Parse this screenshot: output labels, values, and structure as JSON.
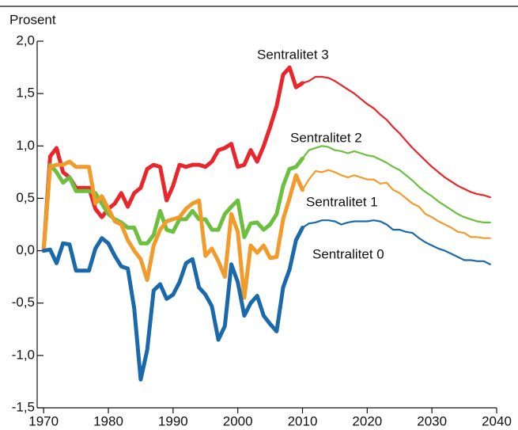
{
  "chart_data": {
    "type": "line",
    "ylabel": "Prosent",
    "x": [
      1970,
      1971,
      1972,
      1973,
      1974,
      1975,
      1976,
      1977,
      1978,
      1979,
      1980,
      1981,
      1982,
      1983,
      1984,
      1985,
      1986,
      1987,
      1988,
      1989,
      1990,
      1991,
      1992,
      1993,
      1994,
      1995,
      1996,
      1997,
      1998,
      1999,
      2000,
      2001,
      2002,
      2003,
      2004,
      2005,
      2006,
      2007,
      2008,
      2009,
      2010,
      2011,
      2012,
      2013,
      2014,
      2015,
      2016,
      2017,
      2018,
      2019,
      2020,
      2021,
      2022,
      2023,
      2024,
      2025,
      2026,
      2027,
      2028,
      2029,
      2030,
      2031,
      2032,
      2033,
      2034,
      2035,
      2036,
      2037,
      2038,
      2039
    ],
    "projection_start": 2010,
    "xlim": [
      1969,
      2040
    ],
    "xticks": [
      1970,
      1980,
      1990,
      2000,
      2010,
      2020,
      2030,
      2040
    ],
    "ylim": [
      -1.5,
      2.0
    ],
    "yticks": [
      {
        "value": -1.5,
        "label": "-1,5"
      },
      {
        "value": -1.0,
        "label": "-1,0"
      },
      {
        "value": -0.5,
        "label": "-0,5"
      },
      {
        "value": 0.0,
        "label": "0,0"
      },
      {
        "value": 0.5,
        "label": "0,5"
      },
      {
        "value": 1.0,
        "label": "1,0"
      },
      {
        "value": 1.5,
        "label": "1,5"
      },
      {
        "value": 2.0,
        "label": "2,0"
      }
    ],
    "series": [
      {
        "name": "Sentralitet 3",
        "color": "#e8262b",
        "values": [
          0.0,
          0.9,
          0.98,
          0.75,
          0.7,
          0.6,
          0.6,
          0.6,
          0.4,
          0.32,
          0.4,
          0.45,
          0.55,
          0.42,
          0.55,
          0.6,
          0.78,
          0.82,
          0.8,
          0.48,
          0.62,
          0.82,
          0.8,
          0.82,
          0.82,
          0.8,
          0.85,
          0.96,
          0.98,
          1.02,
          0.8,
          0.82,
          0.96,
          0.85,
          1.0,
          1.18,
          1.38,
          1.68,
          1.75,
          1.56,
          1.6,
          1.62,
          1.66,
          1.66,
          1.65,
          1.62,
          1.58,
          1.54,
          1.5,
          1.45,
          1.4,
          1.36,
          1.3,
          1.25,
          1.18,
          1.12,
          1.05,
          0.98,
          0.92,
          0.86,
          0.8,
          0.75,
          0.7,
          0.66,
          0.62,
          0.59,
          0.56,
          0.54,
          0.53,
          0.51
        ]
      },
      {
        "name": "Sentralitet 2",
        "color": "#6cbf3f",
        "values": [
          0.0,
          0.82,
          0.75,
          0.65,
          0.7,
          0.57,
          0.57,
          0.57,
          0.55,
          0.45,
          0.35,
          0.3,
          0.27,
          0.22,
          0.22,
          0.07,
          0.07,
          0.15,
          0.38,
          0.2,
          0.18,
          0.3,
          0.3,
          0.38,
          0.3,
          0.3,
          0.2,
          0.2,
          0.35,
          0.42,
          0.48,
          0.13,
          0.26,
          0.27,
          0.2,
          0.25,
          0.35,
          0.62,
          0.78,
          0.8,
          0.88,
          0.96,
          0.98,
          1.0,
          0.99,
          0.96,
          0.95,
          0.93,
          0.95,
          0.93,
          0.91,
          0.9,
          0.87,
          0.84,
          0.8,
          0.77,
          0.72,
          0.67,
          0.61,
          0.56,
          0.52,
          0.47,
          0.43,
          0.39,
          0.35,
          0.32,
          0.3,
          0.28,
          0.27,
          0.27
        ]
      },
      {
        "name": "Sentralitet 1",
        "color": "#f39b2a",
        "values": [
          0.0,
          0.8,
          0.82,
          0.82,
          0.85,
          0.8,
          0.8,
          0.8,
          0.45,
          0.52,
          0.4,
          0.28,
          0.25,
          0.1,
          0.0,
          -0.08,
          -0.28,
          0.05,
          0.2,
          0.28,
          0.3,
          0.32,
          0.4,
          0.45,
          0.48,
          -0.05,
          0.02,
          -0.1,
          -0.25,
          0.35,
          0.18,
          -0.45,
          0.05,
          -0.02,
          0.05,
          -0.07,
          -0.06,
          0.3,
          0.5,
          0.72,
          0.58,
          0.68,
          0.76,
          0.75,
          0.77,
          0.75,
          0.72,
          0.7,
          0.72,
          0.7,
          0.68,
          0.68,
          0.64,
          0.65,
          0.58,
          0.55,
          0.5,
          0.45,
          0.42,
          0.35,
          0.32,
          0.28,
          0.25,
          0.22,
          0.18,
          0.17,
          0.13,
          0.13,
          0.12,
          0.12
        ]
      },
      {
        "name": "Sentralitet 0",
        "color": "#1a6aab",
        "values": [
          0.0,
          0.01,
          -0.12,
          0.07,
          0.06,
          -0.19,
          -0.19,
          -0.19,
          0.02,
          0.12,
          0.07,
          -0.05,
          -0.15,
          -0.17,
          -0.55,
          -1.23,
          -0.95,
          -0.38,
          -0.32,
          -0.46,
          -0.42,
          -0.3,
          -0.12,
          -0.08,
          -0.35,
          -0.42,
          -0.53,
          -0.85,
          -0.72,
          -0.13,
          -0.3,
          -0.62,
          -0.5,
          -0.43,
          -0.62,
          -0.7,
          -0.77,
          -0.35,
          -0.18,
          0.1,
          0.22,
          0.26,
          0.27,
          0.29,
          0.29,
          0.28,
          0.25,
          0.27,
          0.28,
          0.28,
          0.28,
          0.29,
          0.28,
          0.25,
          0.2,
          0.2,
          0.18,
          0.17,
          0.12,
          0.08,
          0.05,
          0.02,
          0.0,
          -0.03,
          -0.06,
          -0.09,
          -0.09,
          -0.1,
          -0.1,
          -0.13
        ]
      }
    ]
  }
}
